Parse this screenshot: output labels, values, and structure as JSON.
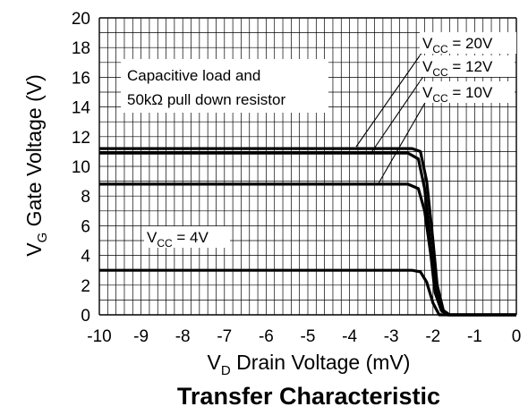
{
  "chart_data": {
    "type": "line",
    "title": "Transfer Characteristic",
    "xlabel": {
      "main": "V",
      "sub": "D",
      "rest": " Drain Voltage (mV)"
    },
    "ylabel": {
      "main": "V",
      "sub": "G",
      "rest": " Gate Voltage (V)"
    },
    "xlim": [
      -10,
      0
    ],
    "ylim": [
      0,
      20
    ],
    "x_ticks": [
      "-10",
      "-9",
      "-8",
      "-7",
      "-6",
      "-5",
      "-4",
      "-3",
      "-2",
      "-1",
      "0"
    ],
    "y_ticks": [
      "0",
      "2",
      "4",
      "6",
      "8",
      "10",
      "12",
      "14",
      "16",
      "18",
      "20"
    ],
    "grid": true,
    "series": [
      {
        "name": "VCC = 20V",
        "x": [
          -10,
          -2.5,
          -2.3,
          -2.15,
          -2.0,
          -1.9,
          -1.75,
          -1.6,
          0
        ],
        "y": [
          11.2,
          11.2,
          11.0,
          9.0,
          5.0,
          2.0,
          0.3,
          0,
          0
        ]
      },
      {
        "name": "VCC = 12V",
        "x": [
          -10,
          -2.6,
          -2.35,
          -2.2,
          -2.05,
          -1.95,
          -1.8,
          -1.65,
          0
        ],
        "y": [
          10.9,
          10.9,
          10.5,
          8.5,
          4.5,
          1.8,
          0.3,
          0,
          0
        ]
      },
      {
        "name": "VCC = 10V",
        "x": [
          -10,
          -2.6,
          -2.35,
          -2.2,
          -2.05,
          -1.95,
          -1.8,
          -1.65,
          0
        ],
        "y": [
          8.8,
          8.8,
          8.5,
          7.0,
          4.0,
          1.5,
          0.3,
          0,
          0
        ]
      },
      {
        "name": "VCC = 4V",
        "x": [
          -10,
          -2.5,
          -2.3,
          -2.15,
          -2.0,
          -1.85,
          0
        ],
        "y": [
          3.0,
          3.0,
          2.9,
          2.2,
          0.8,
          0,
          0
        ]
      }
    ],
    "annotations": [
      {
        "id": "vcc20",
        "main": "V",
        "sub": "CC",
        "rest": " = 20V"
      },
      {
        "id": "vcc12",
        "main": "V",
        "sub": "CC",
        "rest": " = 12V"
      },
      {
        "id": "vcc10",
        "main": "V",
        "sub": "CC",
        "rest": " = 10V"
      },
      {
        "id": "vcc4",
        "main": "V",
        "sub": "CC",
        "rest": " = 4V"
      },
      {
        "id": "note",
        "lines": [
          "Capacitive load and",
          "50kΩ pull down resistor"
        ]
      }
    ]
  }
}
